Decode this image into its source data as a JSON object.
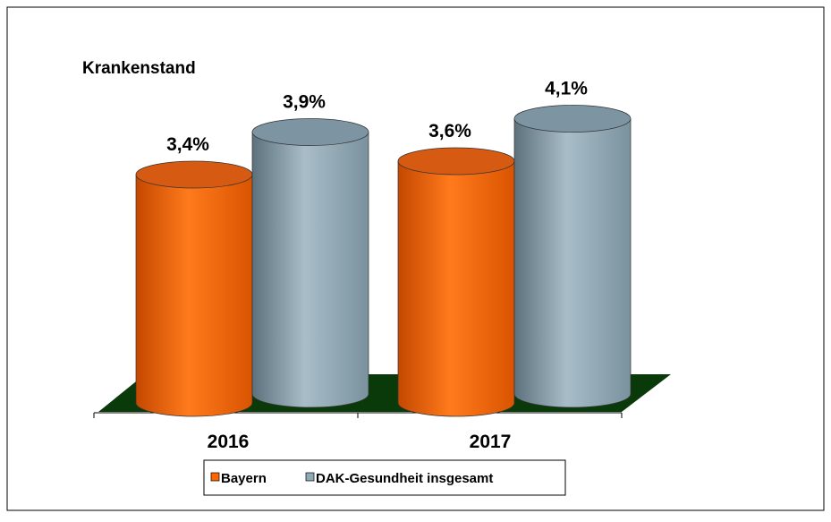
{
  "chart_data": {
    "type": "cylinder_bar",
    "title": "Krankenstand",
    "categories": [
      "2016",
      "2017"
    ],
    "series": [
      {
        "name": "Bayern",
        "color": "#ff6600",
        "values": [
          3.4,
          3.6
        ],
        "value_labels": [
          "3,4%",
          "3,6%"
        ]
      },
      {
        "name": "DAK-Gesundheit insgesamt",
        "color": "#8fa9b6",
        "values": [
          3.9,
          4.1
        ],
        "value_labels": [
          "3,9%",
          "4,1%"
        ]
      }
    ]
  }
}
